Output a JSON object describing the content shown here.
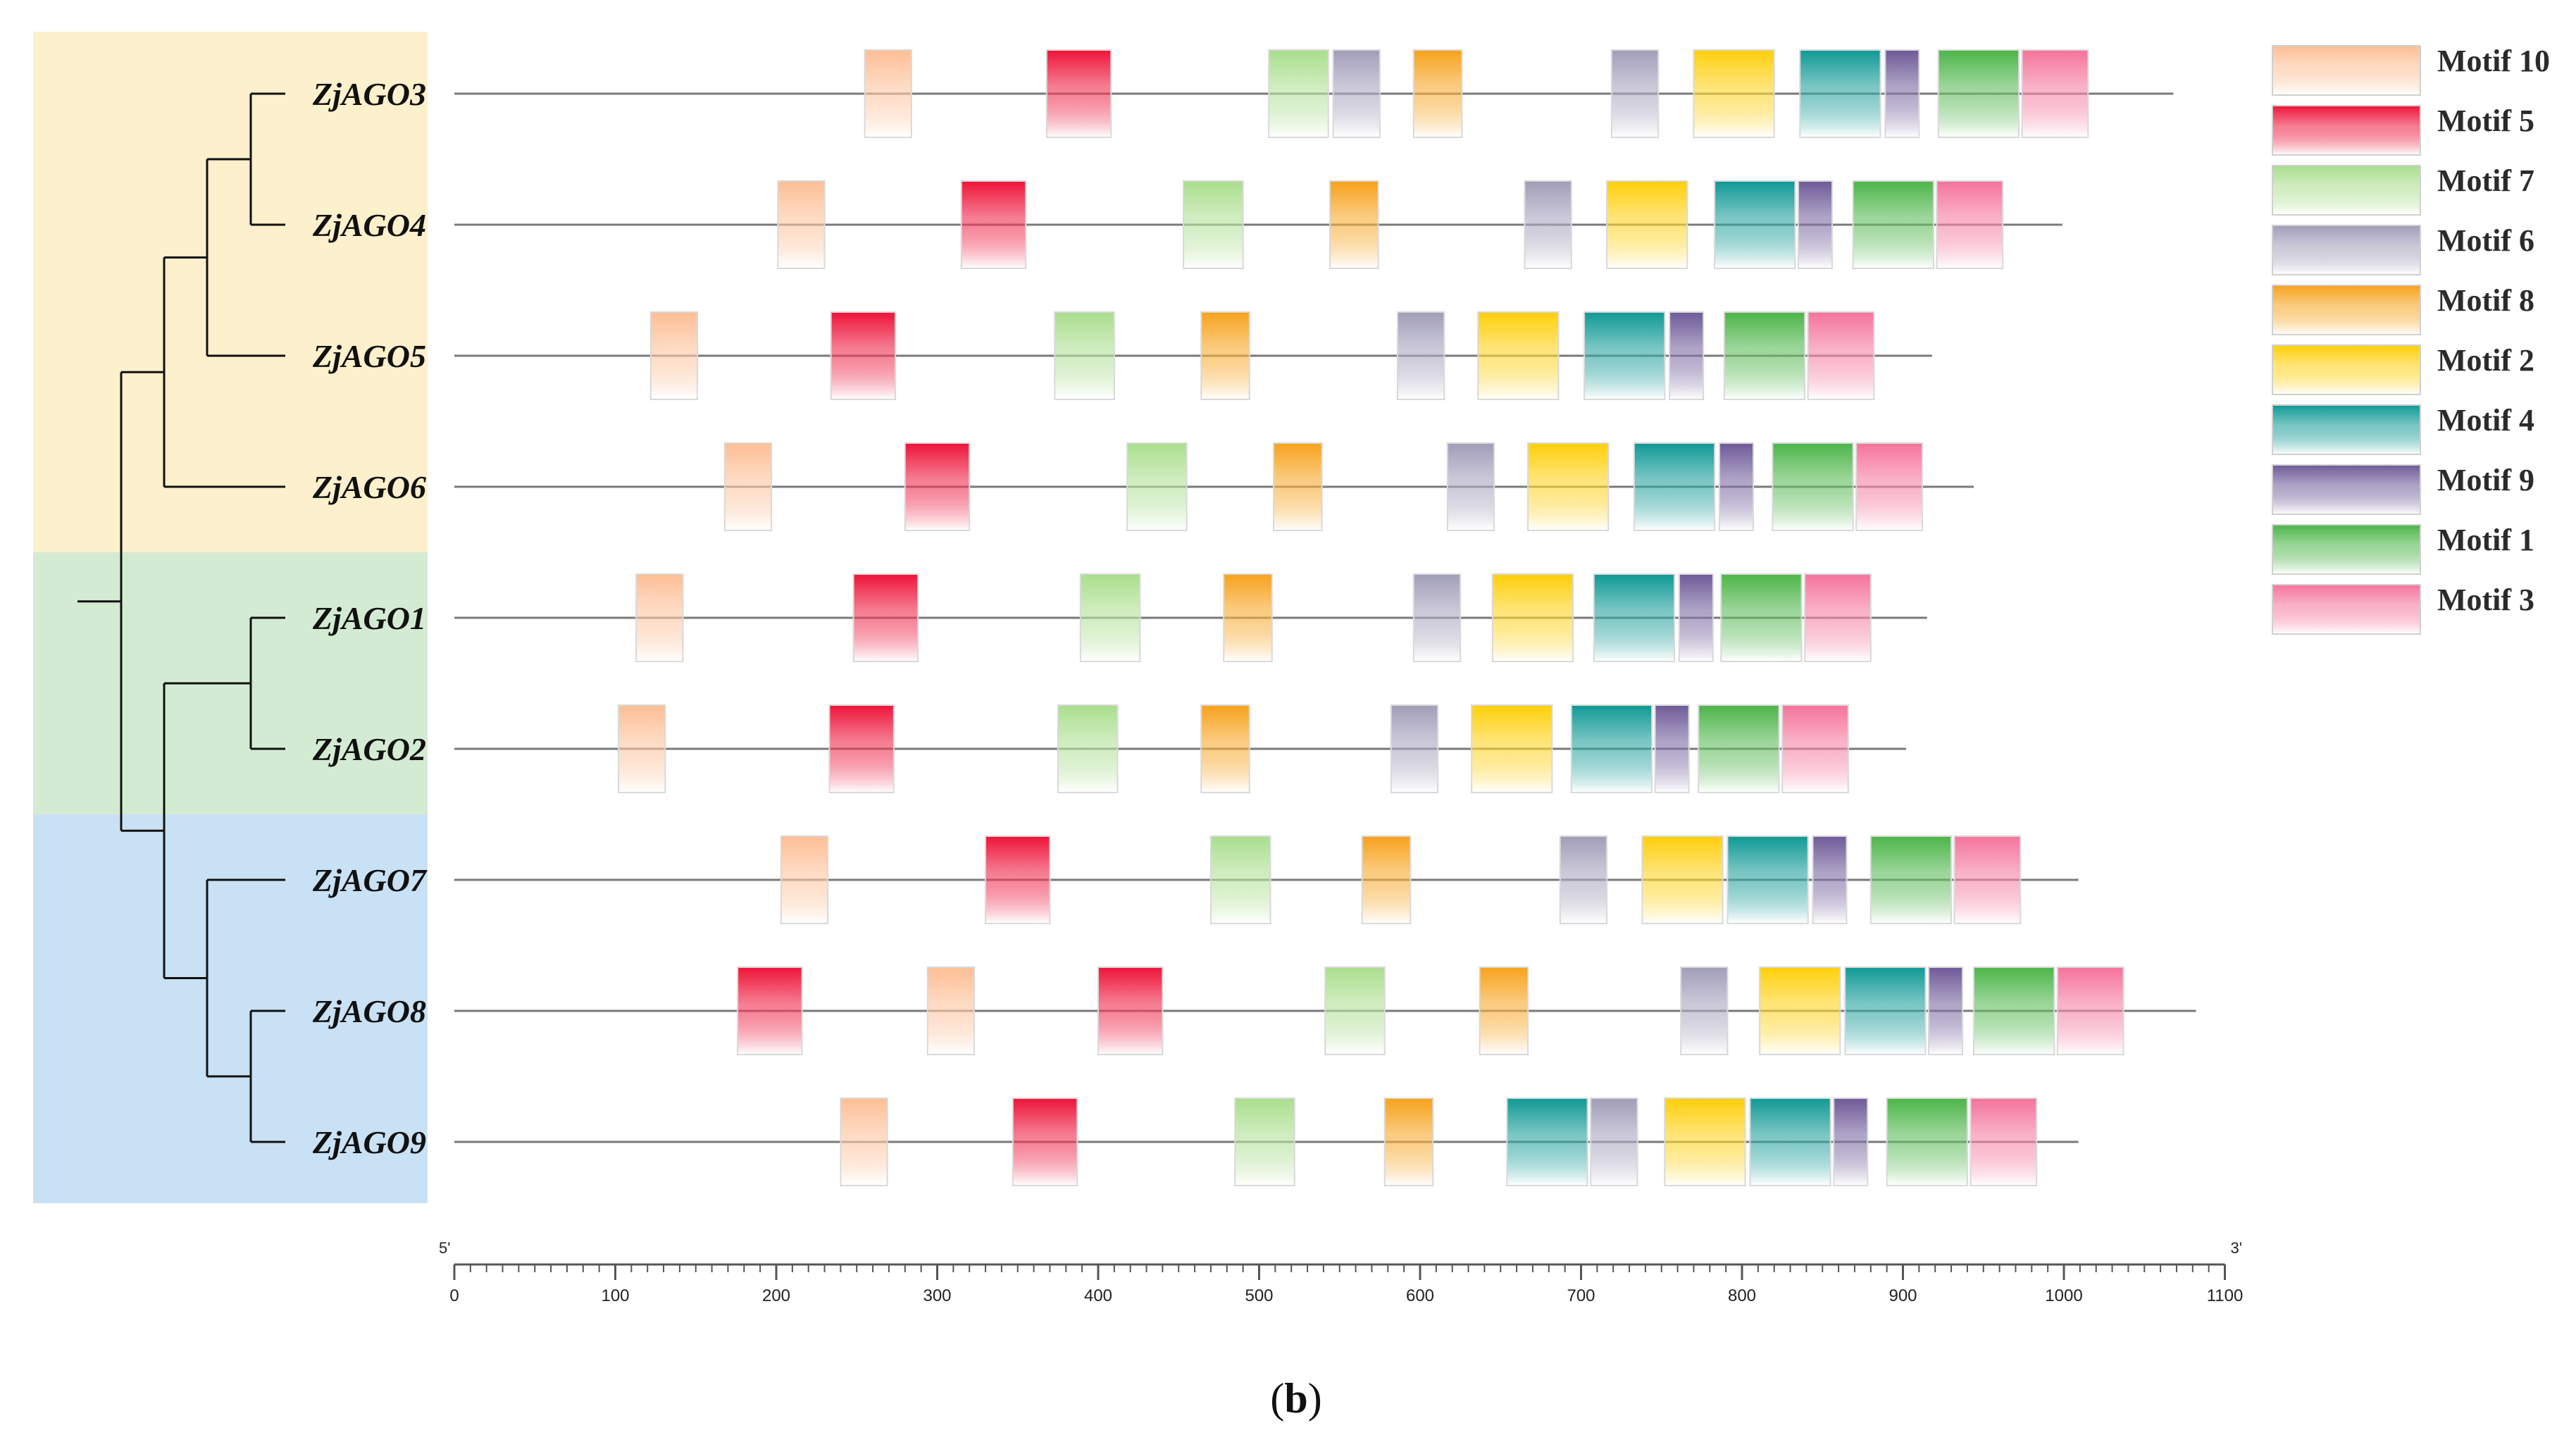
{
  "chart_data": {
    "type": "motif-structure",
    "panel_label": {
      "open": "(",
      "letter": "b",
      "close": ")"
    },
    "axis": {
      "min": 0,
      "max": 1100,
      "tick_step": 100,
      "ticks": [
        "0",
        "100",
        "200",
        "300",
        "400",
        "500",
        "600",
        "700",
        "800",
        "900",
        "1000",
        "1100"
      ],
      "left_end": "5'",
      "right_end": "3'"
    },
    "clades": [
      {
        "name": "clade-yellow",
        "color": "#FDF0CC",
        "genes": [
          "ZjAGO3",
          "ZjAGO4",
          "ZjAGO5",
          "ZjAGO6"
        ]
      },
      {
        "name": "clade-green",
        "color": "#D4EBD3",
        "genes": [
          "ZjAGO1",
          "ZjAGO2"
        ]
      },
      {
        "name": "clade-blue",
        "color": "#C9E1F4",
        "genes": [
          "ZjAGO7",
          "ZjAGO8",
          "ZjAGO9"
        ]
      }
    ],
    "motifs": [
      {
        "id": "m10",
        "label": "Motif 10",
        "color": "#FDBE94"
      },
      {
        "id": "m5",
        "label": "Motif 5",
        "color": "#EE1439"
      },
      {
        "id": "m7",
        "label": "Motif 7",
        "color": "#A9DE8C"
      },
      {
        "id": "m6",
        "label": "Motif 6",
        "color": "#A09DB8"
      },
      {
        "id": "m8",
        "label": "Motif 8",
        "color": "#F7A21B"
      },
      {
        "id": "m2",
        "label": "Motif 2",
        "color": "#FFCF0A"
      },
      {
        "id": "m4",
        "label": "Motif 4",
        "color": "#0F9995"
      },
      {
        "id": "m9",
        "label": "Motif 9",
        "color": "#6E5A98"
      },
      {
        "id": "m1",
        "label": "Motif 1",
        "color": "#4CB548"
      },
      {
        "id": "m3",
        "label": "Motif 3",
        "color": "#F5739A"
      }
    ],
    "genes": [
      {
        "name": "ZjAGO3",
        "length": 1068,
        "motifs": [
          {
            "m": "m10",
            "start": 255,
            "end": 284
          },
          {
            "m": "m5",
            "start": 368,
            "end": 408
          },
          {
            "m": "m7",
            "start": 506,
            "end": 543
          },
          {
            "m": "m6",
            "start": 546,
            "end": 575
          },
          {
            "m": "m8",
            "start": 596,
            "end": 626
          },
          {
            "m": "m6",
            "start": 719,
            "end": 748
          },
          {
            "m": "m2",
            "start": 770,
            "end": 820
          },
          {
            "m": "m4",
            "start": 836,
            "end": 886
          },
          {
            "m": "m9",
            "start": 889,
            "end": 910
          },
          {
            "m": "m1",
            "start": 922,
            "end": 972
          },
          {
            "m": "m3",
            "start": 974,
            "end": 1015
          }
        ]
      },
      {
        "name": "ZjAGO4",
        "length": 999,
        "motifs": [
          {
            "m": "m10",
            "start": 201,
            "end": 230
          },
          {
            "m": "m5",
            "start": 315,
            "end": 355
          },
          {
            "m": "m7",
            "start": 453,
            "end": 490
          },
          {
            "m": "m8",
            "start": 544,
            "end": 574
          },
          {
            "m": "m6",
            "start": 665,
            "end": 694
          },
          {
            "m": "m2",
            "start": 716,
            "end": 766
          },
          {
            "m": "m4",
            "start": 783,
            "end": 833
          },
          {
            "m": "m9",
            "start": 835,
            "end": 856
          },
          {
            "m": "m1",
            "start": 869,
            "end": 919
          },
          {
            "m": "m3",
            "start": 921,
            "end": 962
          }
        ]
      },
      {
        "name": "ZjAGO5",
        "length": 918,
        "motifs": [
          {
            "m": "m10",
            "start": 122,
            "end": 151
          },
          {
            "m": "m5",
            "start": 234,
            "end": 274
          },
          {
            "m": "m7",
            "start": 373,
            "end": 410
          },
          {
            "m": "m8",
            "start": 464,
            "end": 494
          },
          {
            "m": "m6",
            "start": 586,
            "end": 615
          },
          {
            "m": "m2",
            "start": 636,
            "end": 686
          },
          {
            "m": "m4",
            "start": 702,
            "end": 752
          },
          {
            "m": "m9",
            "start": 755,
            "end": 776
          },
          {
            "m": "m1",
            "start": 789,
            "end": 839
          },
          {
            "m": "m3",
            "start": 841,
            "end": 882
          }
        ]
      },
      {
        "name": "ZjAGO6",
        "length": 944,
        "motifs": [
          {
            "m": "m10",
            "start": 168,
            "end": 197
          },
          {
            "m": "m5",
            "start": 280,
            "end": 320
          },
          {
            "m": "m7",
            "start": 418,
            "end": 455
          },
          {
            "m": "m8",
            "start": 509,
            "end": 539
          },
          {
            "m": "m6",
            "start": 617,
            "end": 646
          },
          {
            "m": "m2",
            "start": 667,
            "end": 717
          },
          {
            "m": "m4",
            "start": 733,
            "end": 783
          },
          {
            "m": "m9",
            "start": 786,
            "end": 807
          },
          {
            "m": "m1",
            "start": 819,
            "end": 869
          },
          {
            "m": "m3",
            "start": 871,
            "end": 912
          }
        ]
      },
      {
        "name": "ZjAGO1",
        "length": 915,
        "motifs": [
          {
            "m": "m10",
            "start": 113,
            "end": 142
          },
          {
            "m": "m5",
            "start": 248,
            "end": 288
          },
          {
            "m": "m7",
            "start": 389,
            "end": 426
          },
          {
            "m": "m8",
            "start": 478,
            "end": 508
          },
          {
            "m": "m6",
            "start": 596,
            "end": 625
          },
          {
            "m": "m2",
            "start": 645,
            "end": 695
          },
          {
            "m": "m4",
            "start": 708,
            "end": 758
          },
          {
            "m": "m9",
            "start": 761,
            "end": 782
          },
          {
            "m": "m1",
            "start": 787,
            "end": 837
          },
          {
            "m": "m3",
            "start": 839,
            "end": 880
          }
        ]
      },
      {
        "name": "ZjAGO2",
        "length": 902,
        "motifs": [
          {
            "m": "m10",
            "start": 102,
            "end": 131
          },
          {
            "m": "m5",
            "start": 233,
            "end": 273
          },
          {
            "m": "m7",
            "start": 375,
            "end": 412
          },
          {
            "m": "m8",
            "start": 464,
            "end": 494
          },
          {
            "m": "m6",
            "start": 582,
            "end": 611
          },
          {
            "m": "m2",
            "start": 632,
            "end": 682
          },
          {
            "m": "m4",
            "start": 694,
            "end": 744
          },
          {
            "m": "m9",
            "start": 746,
            "end": 767
          },
          {
            "m": "m1",
            "start": 773,
            "end": 823
          },
          {
            "m": "m3",
            "start": 825,
            "end": 866
          }
        ]
      },
      {
        "name": "ZjAGO7",
        "length": 1009,
        "motifs": [
          {
            "m": "m10",
            "start": 203,
            "end": 232
          },
          {
            "m": "m5",
            "start": 330,
            "end": 370
          },
          {
            "m": "m7",
            "start": 470,
            "end": 507
          },
          {
            "m": "m8",
            "start": 564,
            "end": 594
          },
          {
            "m": "m6",
            "start": 687,
            "end": 716
          },
          {
            "m": "m2",
            "start": 738,
            "end": 788
          },
          {
            "m": "m4",
            "start": 791,
            "end": 841
          },
          {
            "m": "m9",
            "start": 844,
            "end": 865
          },
          {
            "m": "m1",
            "start": 880,
            "end": 930
          },
          {
            "m": "m3",
            "start": 932,
            "end": 973
          }
        ]
      },
      {
        "name": "ZjAGO8",
        "length": 1082,
        "motifs": [
          {
            "m": "m5",
            "start": 176,
            "end": 216
          },
          {
            "m": "m10",
            "start": 294,
            "end": 323
          },
          {
            "m": "m5",
            "start": 400,
            "end": 440
          },
          {
            "m": "m7",
            "start": 541,
            "end": 578
          },
          {
            "m": "m8",
            "start": 637,
            "end": 667
          },
          {
            "m": "m6",
            "start": 762,
            "end": 791
          },
          {
            "m": "m2",
            "start": 811,
            "end": 861
          },
          {
            "m": "m4",
            "start": 864,
            "end": 914
          },
          {
            "m": "m9",
            "start": 916,
            "end": 937
          },
          {
            "m": "m1",
            "start": 944,
            "end": 994
          },
          {
            "m": "m3",
            "start": 996,
            "end": 1037
          }
        ]
      },
      {
        "name": "ZjAGO9",
        "length": 1009,
        "motifs": [
          {
            "m": "m10",
            "start": 240,
            "end": 269
          },
          {
            "m": "m5",
            "start": 347,
            "end": 387
          },
          {
            "m": "m7",
            "start": 485,
            "end": 522
          },
          {
            "m": "m8",
            "start": 578,
            "end": 608
          },
          {
            "m": "m4",
            "start": 654,
            "end": 704
          },
          {
            "m": "m6",
            "start": 706,
            "end": 735
          },
          {
            "m": "m2",
            "start": 752,
            "end": 802
          },
          {
            "m": "m4",
            "start": 805,
            "end": 855
          },
          {
            "m": "m9",
            "start": 857,
            "end": 878
          },
          {
            "m": "m1",
            "start": 890,
            "end": 940
          },
          {
            "m": "m3",
            "start": 942,
            "end": 983
          }
        ]
      }
    ]
  }
}
